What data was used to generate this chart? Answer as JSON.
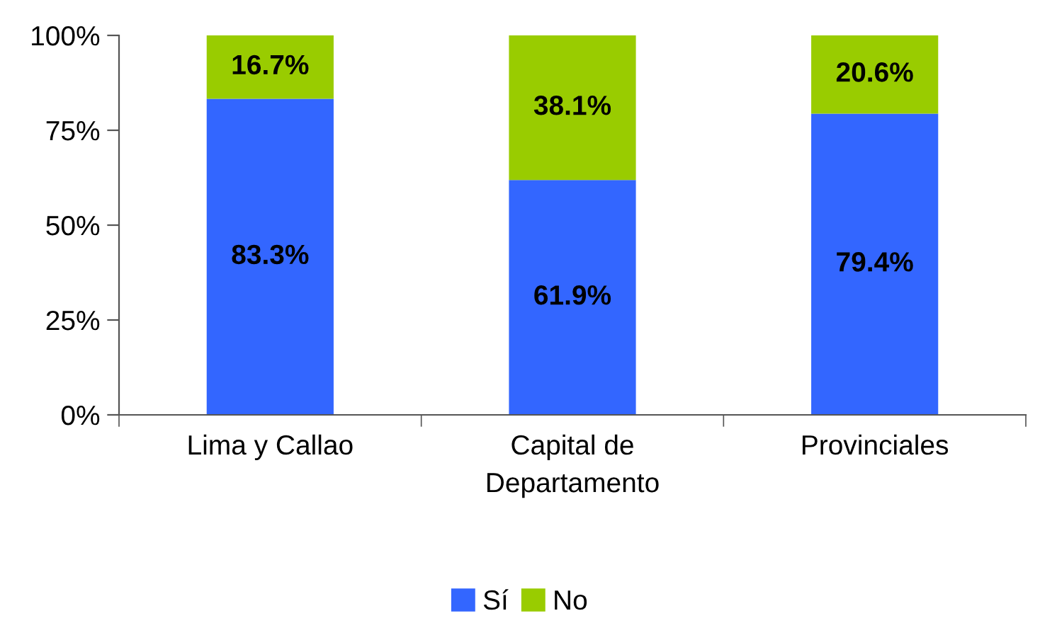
{
  "chart_data": {
    "type": "bar",
    "stacked": true,
    "categories": [
      "Lima y Callao",
      "Capital de\nDepartamento",
      "Provinciales"
    ],
    "series": [
      {
        "name": "Sí",
        "color": "#3366ff",
        "values": [
          83.3,
          61.9,
          79.4
        ],
        "value_labels": [
          "83.3%",
          "61.9%",
          "79.4%"
        ]
      },
      {
        "name": "No",
        "color": "#99cc00",
        "values": [
          16.7,
          38.1,
          20.6
        ],
        "value_labels": [
          "16.7%",
          "38.1%",
          "20.6%"
        ]
      }
    ],
    "ylim": [
      0,
      100
    ],
    "yticks": [
      {
        "value": 0,
        "label": "0%"
      },
      {
        "value": 25,
        "label": "25%"
      },
      {
        "value": 50,
        "label": "50%"
      },
      {
        "value": 75,
        "label": "75%"
      },
      {
        "value": 100,
        "label": "100%"
      }
    ],
    "grid": false,
    "legend": "bottom"
  }
}
